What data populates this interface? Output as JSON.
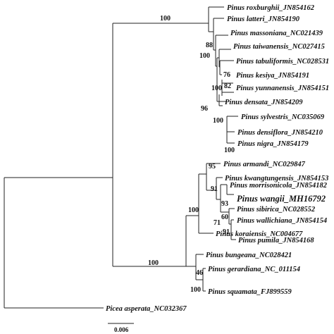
{
  "taxa": [
    {
      "id": "roxburghii",
      "label": "Pinus roxburghii_JN854162"
    },
    {
      "id": "latteri",
      "label": "Pinus latteri_JN854190"
    },
    {
      "id": "massoniana",
      "label": "Pinus massoniana_NC021439"
    },
    {
      "id": "taiwanensis",
      "label": "Pinus taiwanensis_NC027415"
    },
    {
      "id": "tabuliformis",
      "label": "Pinus tabuliformis_NC028531"
    },
    {
      "id": "kesiya",
      "label": "Pinus kesiya_JN854191"
    },
    {
      "id": "yunnanensis",
      "label": "Pinus yunnanensis_JN854151"
    },
    {
      "id": "densata",
      "label": "Pinus densata_JN854209"
    },
    {
      "id": "sylvestris",
      "label": "Pinus sylvestris_NC035069"
    },
    {
      "id": "densiflora",
      "label": "Pinus densiflora_JN854210"
    },
    {
      "id": "nigra",
      "label": "Pinus nigra_JN854179"
    },
    {
      "id": "armandi",
      "label": "Pinus armandi_NC029847"
    },
    {
      "id": "kwangtungensis",
      "label": "Pinus kwangtungensis_JN854153"
    },
    {
      "id": "morrisonicola",
      "label": "Pinus morrisonicola_JN854182"
    },
    {
      "id": "wangii",
      "label": "Pinus wangii_MH16792",
      "highlight": true
    },
    {
      "id": "sibirica",
      "label": "Pinus sibirica_NC028552"
    },
    {
      "id": "wallichiana",
      "label": "Pinus wallichiana_JN854154"
    },
    {
      "id": "pumila",
      "label": "Pinus pumila_JN854168"
    },
    {
      "id": "koraiensis",
      "label": "Pinus koraiensis_NC004677"
    },
    {
      "id": "bungeana",
      "label": "Pinus bungeana_NC028421"
    },
    {
      "id": "gerardiana",
      "label": "Pinus gerardiana_NC_011154"
    },
    {
      "id": "squamata",
      "label": "Pinus squamata_FJ899559"
    },
    {
      "id": "asperata",
      "label": "Picea asperata_NC032367"
    }
  ],
  "support_values": [
    "100",
    "88",
    "100",
    "76",
    "82",
    "96",
    "100",
    "100",
    "100",
    "95",
    "91",
    "93",
    "60",
    "71",
    "91",
    "100",
    "100",
    "46",
    "100"
  ],
  "scale_bar": {
    "value": 0.006,
    "label": "0.006"
  }
}
